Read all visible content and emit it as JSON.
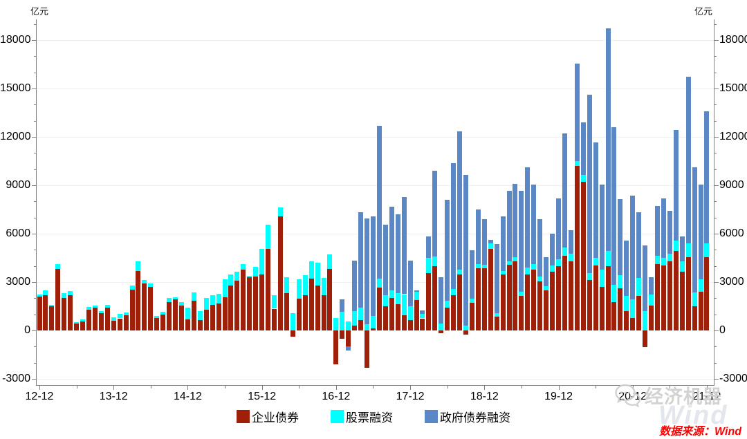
{
  "unit_left": "亿元",
  "unit_right": "亿元",
  "watermark": {
    "text": "经济机器",
    "ghost_text": "Wind"
  },
  "source_note": "数据来源：Wind",
  "colors": {
    "corporate_bond": "#A01F08",
    "equity": "#00FFFF",
    "gov_bond": "#5B87C4",
    "axis": "#808080",
    "grid": "#f0f0f0",
    "source_text": "#ff0000",
    "watermark_gray": "#cfcfcf"
  },
  "chart_data": {
    "type": "bar",
    "stacked": true,
    "unit": "亿元",
    "ylim": [
      -3400,
      19300
    ],
    "y_ticks": [
      -3000,
      0,
      3000,
      6000,
      9000,
      12000,
      15000,
      18000
    ],
    "y_minor_step": 1000,
    "x_tick_labels": [
      "12-12",
      "13-12",
      "14-12",
      "15-12",
      "16-12",
      "17-12",
      "18-12",
      "19-12",
      "20-12",
      "21-12"
    ],
    "grid": "horizontal-faint",
    "legend_position": "bottom-center",
    "categories": [
      "12-12",
      "13-01",
      "13-02",
      "13-03",
      "13-04",
      "13-05",
      "13-06",
      "13-07",
      "13-08",
      "13-09",
      "13-10",
      "13-11",
      "13-12",
      "14-01",
      "14-02",
      "14-03",
      "14-04",
      "14-05",
      "14-06",
      "14-07",
      "14-08",
      "14-09",
      "14-10",
      "14-11",
      "14-12",
      "15-01",
      "15-02",
      "15-03",
      "15-04",
      "15-05",
      "15-06",
      "15-07",
      "15-08",
      "15-09",
      "15-10",
      "15-11",
      "15-12",
      "16-01",
      "16-02",
      "16-03",
      "16-04",
      "16-05",
      "16-06",
      "16-07",
      "16-08",
      "16-09",
      "16-10",
      "16-11",
      "16-12",
      "17-01",
      "17-02",
      "17-03",
      "17-04",
      "17-05",
      "17-06",
      "17-07",
      "17-08",
      "17-09",
      "17-10",
      "17-11",
      "17-12",
      "18-01",
      "18-02",
      "18-03",
      "18-04",
      "18-05",
      "18-06",
      "18-07",
      "18-08",
      "18-09",
      "18-10",
      "18-11",
      "18-12",
      "19-01",
      "19-02",
      "19-03",
      "19-04",
      "19-05",
      "19-06",
      "19-07",
      "19-08",
      "19-09",
      "19-10",
      "19-11",
      "19-12",
      "20-01",
      "20-02",
      "20-03",
      "20-04",
      "20-05",
      "20-06",
      "20-07",
      "20-08",
      "20-09",
      "20-10",
      "20-11",
      "20-12",
      "21-01",
      "21-02",
      "21-03",
      "21-04",
      "21-05",
      "21-06",
      "21-07",
      "21-08",
      "21-09",
      "21-10",
      "21-11",
      "21-12"
    ],
    "series": [
      {
        "name": "企业债券",
        "color": "#A01F08",
        "values": [
          2100,
          2200,
          1500,
          3820,
          2030,
          2200,
          420,
          550,
          1300,
          1430,
          1060,
          1400,
          600,
          750,
          950,
          2520,
          3680,
          2900,
          2700,
          770,
          990,
          1770,
          1920,
          1560,
          700,
          1850,
          660,
          1300,
          1590,
          1670,
          2060,
          2770,
          3090,
          3770,
          3310,
          3350,
          3490,
          5060,
          1350,
          7060,
          2300,
          -400,
          1990,
          2200,
          3200,
          2770,
          2170,
          3800,
          -2100,
          -500,
          -970,
          300,
          645,
          -2330,
          150,
          2660,
          1500,
          2000,
          1630,
          960,
          630,
          1900,
          750,
          3550,
          3990,
          -150,
          1415,
          2200,
          3490,
          -250,
          1700,
          3845,
          3845,
          5060,
          840,
          3490,
          4090,
          4275,
          2130,
          3490,
          3775,
          3060,
          2490,
          3630,
          3990,
          4630,
          4275,
          10200,
          9200,
          3130,
          4030,
          2700,
          3990,
          1770,
          2630,
          1200,
          770,
          2130,
          -1030,
          1560,
          4130,
          4030,
          4275,
          4915,
          3630,
          4560,
          1485,
          2415,
          4560
        ]
      },
      {
        "name": "股票融资",
        "color": "#00FFFF",
        "values": [
          150,
          270,
          100,
          280,
          290,
          250,
          100,
          130,
          150,
          130,
          140,
          170,
          200,
          290,
          170,
          260,
          620,
          250,
          200,
          120,
          150,
          260,
          150,
          190,
          700,
          500,
          540,
          720,
          610,
          600,
          1110,
          690,
          540,
          360,
          60,
          600,
          1570,
          1500,
          820,
          570,
          1000,
          1060,
          1180,
          1215,
          1070,
          1430,
          1100,
          900,
          770,
          1160,
          560,
          880,
          755,
          400,
          750,
          540,
          670,
          500,
          690,
          1290,
          860,
          520,
          290,
          970,
          600,
          430,
          430,
          360,
          285,
          300,
          290,
          285,
          215,
          355,
          215,
          215,
          215,
          285,
          285,
          430,
          355,
          285,
          255,
          400,
          430,
          500,
          500,
          315,
          430,
          430,
          455,
          1070,
          930,
          1070,
          785,
          930,
          1145,
          1145,
          1200,
          670,
          500,
          485,
          470,
          645,
          670,
          855,
          855,
          760,
          855
        ]
      },
      {
        "name": "政府债券融资",
        "color": "#5B87C4",
        "values": [
          0,
          0,
          0,
          0,
          0,
          0,
          0,
          0,
          0,
          0,
          0,
          0,
          0,
          0,
          0,
          0,
          0,
          0,
          0,
          0,
          0,
          0,
          0,
          0,
          0,
          0,
          0,
          0,
          0,
          0,
          0,
          0,
          0,
          0,
          0,
          0,
          0,
          0,
          0,
          0,
          0,
          0,
          0,
          0,
          0,
          0,
          0,
          0,
          0,
          760,
          -260,
          3140,
          5920,
          6560,
          6160,
          9490,
          4390,
          5160,
          4880,
          6020,
          2830,
          70,
          220,
          1300,
          5300,
          2850,
          6260,
          7820,
          8570,
          9340,
          3000,
          3360,
          2830,
          215,
          4290,
          3360,
          4360,
          4530,
          6245,
          6215,
          4930,
          3575,
          1815,
          1960,
          3760,
          7075,
          1460,
          6015,
          3290,
          11075,
          7175,
          5260,
          13820,
          9745,
          4715,
          3430,
          6430,
          4045,
          4070,
          1085,
          3075,
          3690,
          2675,
          6860,
          1545,
          10330,
          7790,
          5860,
          8190
        ]
      }
    ]
  }
}
